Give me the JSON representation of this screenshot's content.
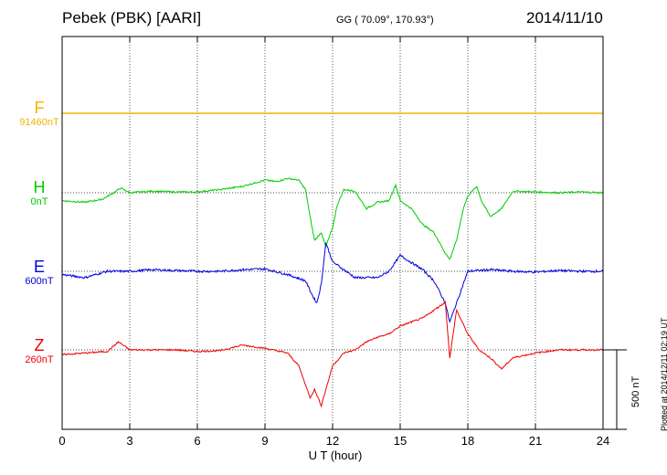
{
  "header": {
    "station": "Pebek (PBK)  [AARI]",
    "coords": "GG ( 70.09°, 170.93°)",
    "date": "2014/11/10"
  },
  "components": [
    {
      "name": "F",
      "baseline": "91460nT",
      "color": "#f0b400",
      "ref_y": 91460
    },
    {
      "name": "H",
      "baseline": "0nT",
      "color": "#00cc00",
      "ref_y": 0
    },
    {
      "name": "E",
      "baseline": "600nT",
      "color": "#0000dd",
      "ref_y": 600
    },
    {
      "name": "Z",
      "baseline": "260nT",
      "color": "#ee0000",
      "ref_y": 260
    }
  ],
  "footer": {
    "plotted": "Plotted at 2014/12/11 02:19 UT",
    "scale": "500 nT"
  },
  "chart_data": {
    "type": "line",
    "title": "Pebek (PBK)  [AARI]",
    "xlabel": "U T (hour)",
    "ylabel": "",
    "xlim": [
      0,
      24
    ],
    "xticks": [
      0,
      3,
      6,
      9,
      12,
      15,
      18,
      21,
      24
    ],
    "grid": true,
    "scale_bar_nT": 500,
    "series": [
      {
        "name": "F",
        "color": "#f0b400",
        "points": [
          [
            0,
            0
          ],
          [
            24,
            0
          ]
        ]
      },
      {
        "name": "H",
        "color": "#00cc00",
        "points": [
          [
            0,
            -50
          ],
          [
            1,
            -60
          ],
          [
            1.8,
            -40
          ],
          [
            2.4,
            10
          ],
          [
            2.6,
            30
          ],
          [
            3,
            0
          ],
          [
            4,
            10
          ],
          [
            5,
            5
          ],
          [
            6,
            5
          ],
          [
            7,
            20
          ],
          [
            8,
            40
          ],
          [
            8.5,
            60
          ],
          [
            9,
            80
          ],
          [
            9.5,
            70
          ],
          [
            10,
            90
          ],
          [
            10.5,
            80
          ],
          [
            10.8,
            20
          ],
          [
            11,
            -150
          ],
          [
            11.2,
            -300
          ],
          [
            11.5,
            -250
          ],
          [
            11.7,
            -340
          ],
          [
            12,
            -220
          ],
          [
            12.2,
            -80
          ],
          [
            12.5,
            20
          ],
          [
            13,
            10
          ],
          [
            13.5,
            -100
          ],
          [
            14,
            -60
          ],
          [
            14.5,
            -50
          ],
          [
            14.8,
            50
          ],
          [
            15,
            -50
          ],
          [
            15.5,
            -100
          ],
          [
            16,
            -200
          ],
          [
            16.5,
            -250
          ],
          [
            17,
            -380
          ],
          [
            17.2,
            -420
          ],
          [
            17.5,
            -300
          ],
          [
            17.8,
            -100
          ],
          [
            18,
            -20
          ],
          [
            18.4,
            40
          ],
          [
            18.6,
            -50
          ],
          [
            19,
            -150
          ],
          [
            19.5,
            -100
          ],
          [
            20,
            10
          ],
          [
            21,
            5
          ],
          [
            22,
            0
          ],
          [
            23,
            5
          ],
          [
            24,
            0
          ]
        ]
      },
      {
        "name": "E",
        "color": "#0000dd",
        "points": [
          [
            0,
            -20
          ],
          [
            1,
            -40
          ],
          [
            2,
            0
          ],
          [
            3,
            0
          ],
          [
            4,
            10
          ],
          [
            5,
            5
          ],
          [
            6,
            0
          ],
          [
            7,
            0
          ],
          [
            8,
            10
          ],
          [
            9,
            15
          ],
          [
            10,
            -20
          ],
          [
            10.8,
            -60
          ],
          [
            11.1,
            -150
          ],
          [
            11.3,
            -200
          ],
          [
            11.5,
            -80
          ],
          [
            11.7,
            180
          ],
          [
            12,
            60
          ],
          [
            13,
            -40
          ],
          [
            14,
            -40
          ],
          [
            14.5,
            0
          ],
          [
            15,
            100
          ],
          [
            16,
            10
          ],
          [
            16.5,
            -60
          ],
          [
            17,
            -200
          ],
          [
            17.2,
            -320
          ],
          [
            17.5,
            -200
          ],
          [
            18,
            0
          ],
          [
            19,
            10
          ],
          [
            20,
            0
          ],
          [
            21,
            -5
          ],
          [
            22,
            5
          ],
          [
            23,
            0
          ],
          [
            24,
            0
          ]
        ]
      },
      {
        "name": "Z",
        "color": "#ee0000",
        "points": [
          [
            0,
            -30
          ],
          [
            1,
            -20
          ],
          [
            2,
            -10
          ],
          [
            2.5,
            50
          ],
          [
            3,
            0
          ],
          [
            4,
            0
          ],
          [
            5,
            0
          ],
          [
            6,
            -10
          ],
          [
            7,
            -5
          ],
          [
            8,
            30
          ],
          [
            9,
            10
          ],
          [
            10,
            -20
          ],
          [
            10.5,
            -100
          ],
          [
            11,
            -300
          ],
          [
            11.2,
            -250
          ],
          [
            11.5,
            -350
          ],
          [
            12,
            -100
          ],
          [
            12.5,
            -20
          ],
          [
            13,
            0
          ],
          [
            13.5,
            50
          ],
          [
            14,
            80
          ],
          [
            14.5,
            100
          ],
          [
            15,
            150
          ],
          [
            16,
            200
          ],
          [
            16.5,
            250
          ],
          [
            17,
            300
          ],
          [
            17.2,
            -50
          ],
          [
            17.5,
            250
          ],
          [
            18,
            100
          ],
          [
            18.5,
            0
          ],
          [
            19,
            -50
          ],
          [
            19.5,
            -120
          ],
          [
            20,
            -50
          ],
          [
            21,
            -20
          ],
          [
            22,
            0
          ],
          [
            23,
            0
          ],
          [
            24,
            0
          ]
        ]
      }
    ]
  }
}
